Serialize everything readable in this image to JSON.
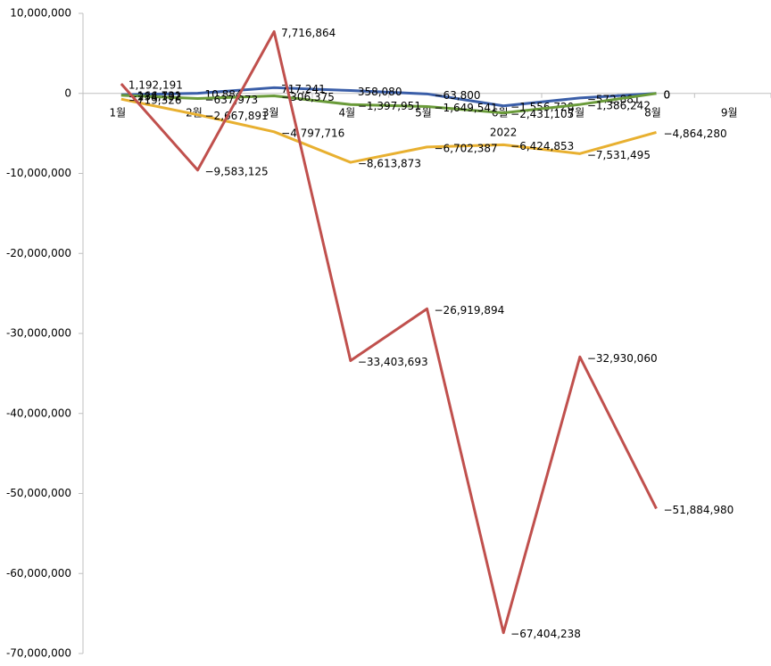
{
  "chart_data": {
    "type": "line",
    "x_label": "2022",
    "categories": [
      "1월",
      "2월",
      "3월",
      "4월",
      "5월",
      "6월",
      "7월",
      "8월",
      "9월"
    ],
    "series": [
      {
        "color": "#3a5ea8",
        "values": [
          -166731,
          10884,
          717241,
          358080,
          -63800,
          -1556720,
          -572881,
          0,
          null
        ],
        "value_labels": [
          "−166,731",
          "10,884",
          "717,241",
          "358,080",
          "−63,800",
          "−1,556,720",
          "−572,881",
          "0",
          null
        ]
      },
      {
        "color": "#6a9b3a",
        "values": [
          -234192,
          -637973,
          -306375,
          -1397951,
          -1649541,
          -2431105,
          -1386242,
          0,
          null
        ],
        "value_labels": [
          "−234,192",
          "−637,973",
          "−306,375",
          "−1,397,951",
          "−1,649,541",
          "−2,431,105",
          "−1,386,242",
          "0",
          null
        ]
      },
      {
        "color": "#e8b030",
        "values": [
          -719326,
          -2667891,
          -4797716,
          -8613873,
          -6702387,
          -6424853,
          -7531495,
          -4864280,
          null
        ],
        "value_labels": [
          "−719,326",
          "−2,667,891",
          "−4,797,716",
          "−8,613,873",
          "−6,702,387",
          "−6,424,853",
          "−7,531,495",
          "−4,864,280",
          null
        ]
      },
      {
        "color": "#c0504d",
        "values": [
          1192191,
          -9583125,
          7716864,
          -33403693,
          -26919894,
          -67404238,
          -32930060,
          -51884980,
          null
        ],
        "value_labels": [
          "1,192,191",
          "−9,583,125",
          "7,716,864",
          "−33,403,693",
          "−26,919,894",
          "−67,404,238",
          "−32,930,060",
          "−51,884,980",
          null
        ]
      }
    ],
    "ylim": [
      -70000000,
      10000000
    ],
    "yticks": [
      {
        "value": 10000000,
        "label": "10,000,000"
      },
      0,
      {
        "value": -10000000,
        "label": "-10,000,000"
      },
      {
        "value": -20000000,
        "label": "-20,000,000"
      },
      {
        "value": -30000000,
        "label": "-30,000,000"
      },
      {
        "value": -40000000,
        "label": "-40,000,000"
      },
      {
        "value": -50000000,
        "label": "-50,000,000"
      },
      {
        "value": -60000000,
        "label": "-60,000,000"
      },
      {
        "value": -70000000,
        "label": "-70,000,000"
      }
    ],
    "grid": false
  }
}
